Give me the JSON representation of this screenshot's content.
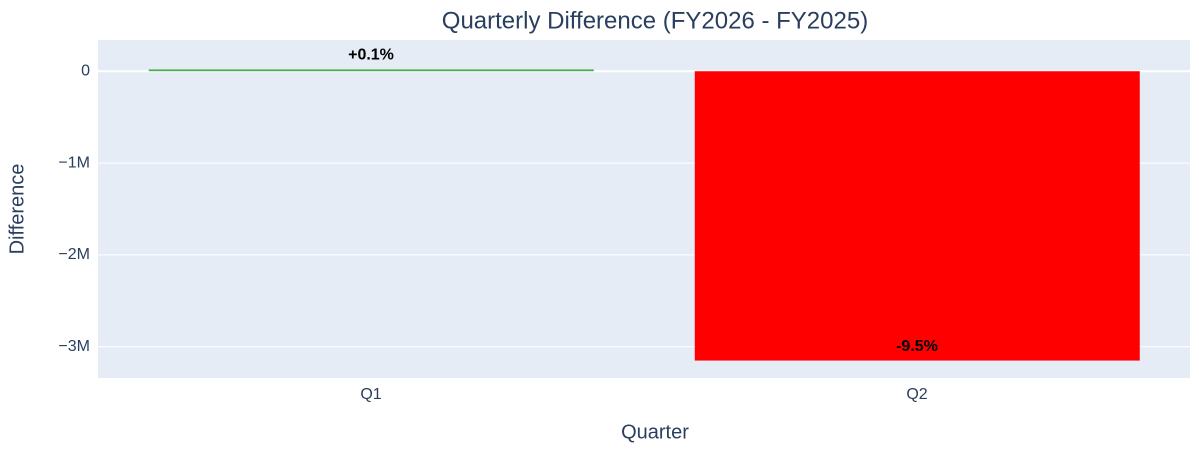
{
  "chart_data": {
    "type": "bar",
    "title": "Quarterly Difference (FY2026 - FY2025)",
    "x_label": "Quarter",
    "y_label": "Difference",
    "categories": [
      "Q1",
      "Q2"
    ],
    "values": [
      20000,
      -3150000
    ],
    "bar_labels": [
      "+0.1%",
      "-9.5%"
    ],
    "colors": [
      "#4caf50",
      "#ff0000"
    ],
    "ylim": [
      -3340000,
      340000
    ],
    "yticks": [
      0,
      {
        "value": -1000000,
        "label": "−1M"
      },
      {
        "value": -2000000,
        "label": "−2M"
      },
      {
        "value": -3000000,
        "label": "−3M"
      }
    ],
    "grid": true
  }
}
